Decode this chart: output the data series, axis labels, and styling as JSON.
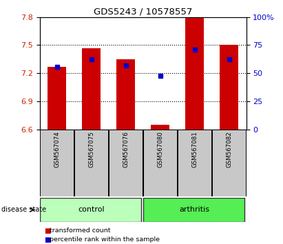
{
  "title": "GDS5243 / 10578557",
  "samples": [
    "GSM567074",
    "GSM567075",
    "GSM567076",
    "GSM567080",
    "GSM567081",
    "GSM567082"
  ],
  "groups": [
    "control",
    "control",
    "control",
    "arthritis",
    "arthritis",
    "arthritis"
  ],
  "bar_bottom": 6.6,
  "red_bar_tops": [
    7.27,
    7.47,
    7.35,
    6.65,
    7.8,
    7.5
  ],
  "blue_marker_y": [
    7.27,
    7.35,
    7.285,
    7.175,
    7.455,
    7.35
  ],
  "ylim": [
    6.6,
    7.8
  ],
  "ylim_right": [
    0,
    100
  ],
  "yticks_left": [
    6.6,
    6.9,
    7.2,
    7.5,
    7.8
  ],
  "yticks_right": [
    0,
    25,
    50,
    75,
    100
  ],
  "red_color": "#cc0000",
  "blue_color": "#0000cc",
  "left_axis_color": "#cc2200",
  "right_axis_color": "#0000cc",
  "bar_width": 0.55,
  "tick_label_bg": "#c8c8c8",
  "control_bg": "#bbffbb",
  "arthritis_bg": "#55ee55",
  "legend_red_label": "transformed count",
  "legend_blue_label": "percentile rank within the sample",
  "disease_state_label": "disease state",
  "control_label": "control",
  "arthritis_label": "arthritis"
}
